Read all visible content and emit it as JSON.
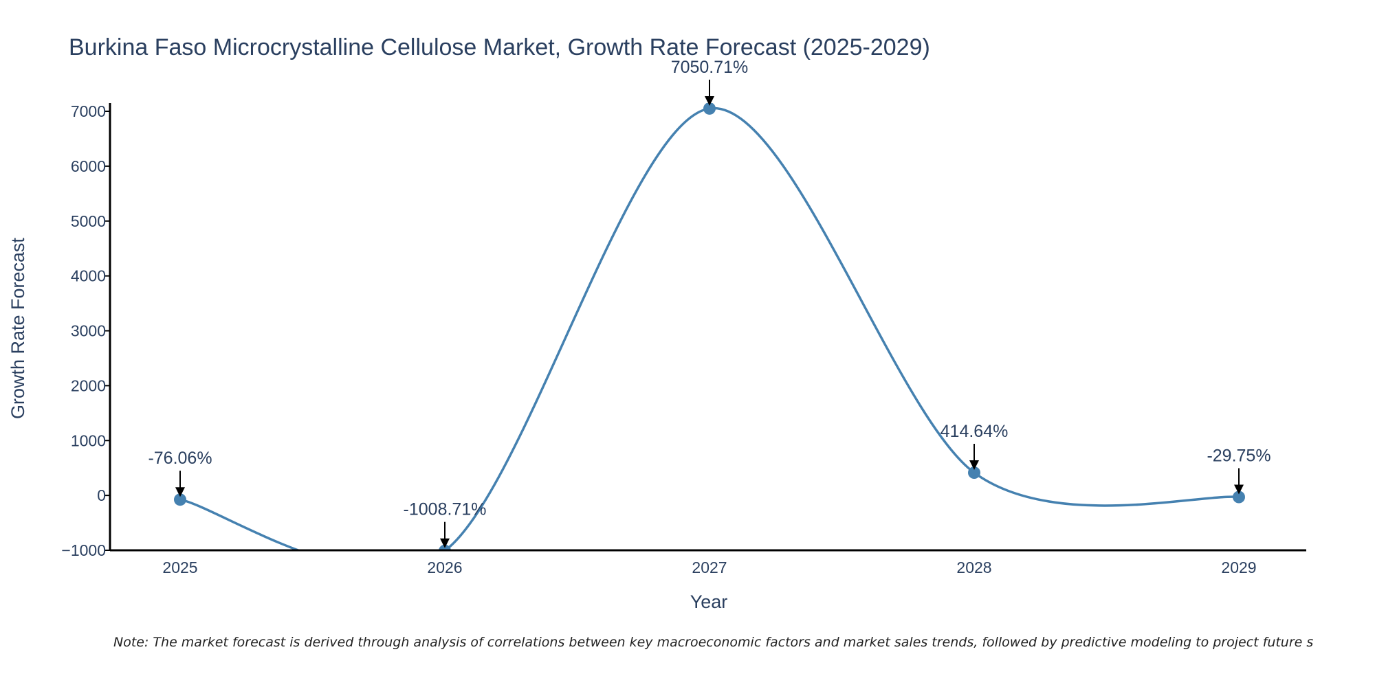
{
  "chart_data": {
    "type": "line",
    "title": "Burkina Faso Microcrystalline Cellulose Market, Growth Rate Forecast (2025-2029)",
    "xlabel": "Year",
    "ylabel": "Growth Rate Forecast",
    "categories": [
      "2025",
      "2026",
      "2027",
      "2028",
      "2029"
    ],
    "values": [
      -76.06,
      -1008.71,
      7050.71,
      414.64,
      -29.75
    ],
    "annotations": [
      "-76.06%",
      "-1008.71%",
      "7050.71%",
      "414.64%",
      "-29.75%"
    ],
    "ylim": [
      -1000,
      7000
    ],
    "yticks": [
      7000,
      6000,
      5000,
      4000,
      3000,
      2000,
      1000,
      0,
      -1000
    ],
    "ytick_labels": [
      "7000",
      "6000",
      "5000",
      "4000",
      "3000",
      "2000",
      "1000",
      "0",
      "−1000"
    ],
    "line_color": "#4581b0",
    "marker_color": "#4581b0",
    "grid": false,
    "legend": "none",
    "smoothing": "spline"
  },
  "note": "Note: The market forecast is derived through analysis of correlations between key macroeconomic factors and market sales trends, followed by predictive modeling to project future s"
}
